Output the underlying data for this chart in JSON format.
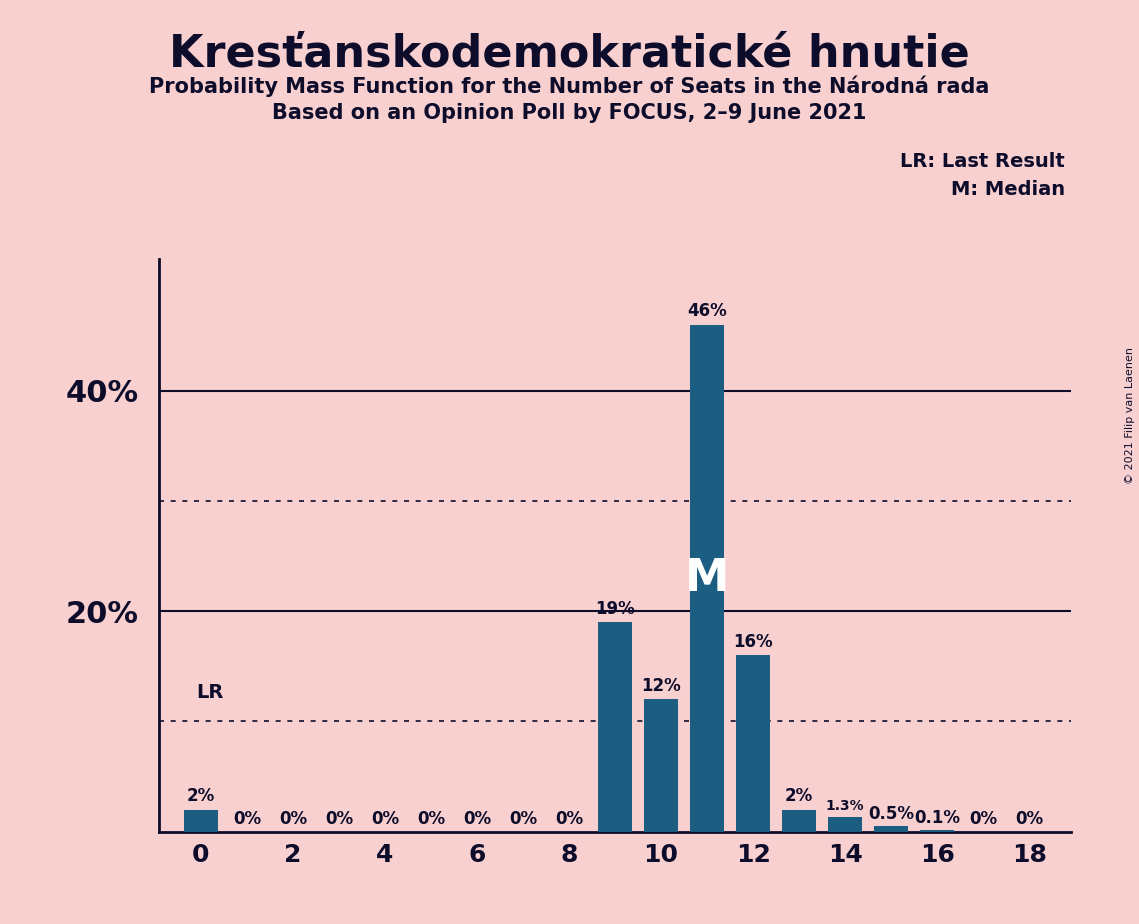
{
  "title": "Kresťanskodemokratické hnutie",
  "subtitle1": "Probability Mass Function for the Number of Seats in the Národná rada",
  "subtitle2": "Based on an Opinion Poll by FOCUS, 2–9 June 2021",
  "copyright": "© 2021 Filip van Laenen",
  "seats": [
    0,
    1,
    2,
    3,
    4,
    5,
    6,
    7,
    8,
    9,
    10,
    11,
    12,
    13,
    14,
    15,
    16,
    17,
    18
  ],
  "probabilities": [
    0.02,
    0.0,
    0.0,
    0.0,
    0.0,
    0.0,
    0.0,
    0.0,
    0.0,
    0.19,
    0.12,
    0.46,
    0.16,
    0.02,
    0.013,
    0.005,
    0.001,
    0.0,
    0.0
  ],
  "bar_labels": [
    "2%",
    "0%",
    "0%",
    "0%",
    "0%",
    "0%",
    "0%",
    "0%",
    "0%",
    "19%",
    "12%",
    "46%",
    "16%",
    "2%",
    "1.3%",
    "0.5%",
    "0.1%",
    "0%",
    "0%"
  ],
  "bar_color": "#1b5e82",
  "background_color": "#f9d0d0",
  "text_color": "#0d0d2b",
  "last_result_seat": 0,
  "median_seat": 11,
  "ylim": [
    0,
    0.52
  ],
  "solid_gridlines": [
    0.2,
    0.4
  ],
  "dotted_gridlines": [
    0.1,
    0.3
  ],
  "ytick_positions": [
    0.2,
    0.4
  ],
  "ytick_labels": [
    "20%",
    "40%"
  ],
  "xticks": [
    0,
    2,
    4,
    6,
    8,
    10,
    12,
    14,
    16,
    18
  ],
  "legend_lr": "LR: Last Result",
  "legend_m": "M: Median",
  "lr_label": "LR",
  "m_label": "M"
}
